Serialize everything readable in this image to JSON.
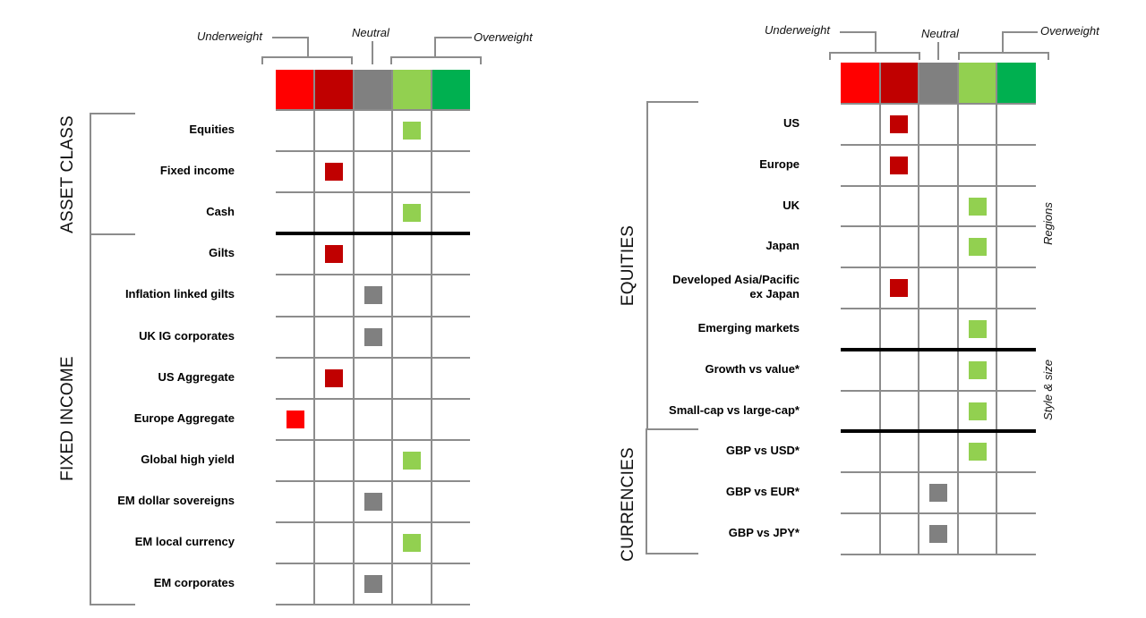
{
  "scale": {
    "labels": {
      "underweight": "Underweight",
      "neutral": "Neutral",
      "overweight": "Overweight"
    },
    "colors": [
      "#ff0000",
      "#c00000",
      "#808080",
      "#92d050",
      "#00b050"
    ],
    "levels": [
      "Strong underweight",
      "Underweight",
      "Neutral",
      "Overweight",
      "Strong overweight"
    ],
    "grid_color": "#8c8c8c",
    "separator_color": "#000000"
  },
  "chart_data": [
    {
      "type": "table",
      "title": "Asset allocation views (left panel)",
      "columns": [
        "Strong underweight",
        "Underweight",
        "Neutral",
        "Overweight",
        "Strong overweight"
      ],
      "column_headers": {
        "underweight": "Underweight",
        "neutral": "Neutral",
        "overweight": "Overweight"
      },
      "groups": [
        {
          "name": "ASSET CLASS",
          "rows": [
            {
              "label": "Equities",
              "position": 4
            },
            {
              "label": "Fixed income",
              "position": 2
            },
            {
              "label": "Cash",
              "position": 4
            }
          ]
        },
        {
          "name": "FIXED INCOME",
          "rows": [
            {
              "label": "Gilts",
              "position": 2
            },
            {
              "label": "Inflation linked gilts",
              "position": 3
            },
            {
              "label": "UK IG corporates",
              "position": 3
            },
            {
              "label": "US Aggregate",
              "position": 2
            },
            {
              "label": "Europe Aggregate",
              "position": 1
            },
            {
              "label": "Global high yield",
              "position": 4
            },
            {
              "label": "EM dollar sovereigns",
              "position": 3
            },
            {
              "label": "EM local currency",
              "position": 4
            },
            {
              "label": "EM corporates",
              "position": 3
            }
          ]
        }
      ]
    },
    {
      "type": "table",
      "title": "Asset allocation views (right panel)",
      "columns": [
        "Strong underweight",
        "Underweight",
        "Neutral",
        "Overweight",
        "Strong overweight"
      ],
      "column_headers": {
        "underweight": "Underweight",
        "neutral": "Neutral",
        "overweight": "Overweight"
      },
      "groups": [
        {
          "name": "EQUITIES",
          "subgroups": [
            {
              "name": "Regions",
              "rows": [
                {
                  "label": "US",
                  "position": 2
                },
                {
                  "label": "Europe",
                  "position": 2
                },
                {
                  "label": "UK",
                  "position": 4
                },
                {
                  "label": "Japan",
                  "position": 4
                },
                {
                  "label": "Developed Asia/Pacific ex Japan",
                  "label_lines": [
                    "Developed Asia/Pacific",
                    "ex Japan"
                  ],
                  "position": 2
                },
                {
                  "label": "Emerging markets",
                  "position": 4
                }
              ]
            },
            {
              "name": "Style & size",
              "rows": [
                {
                  "label": "Growth vs value*",
                  "position": 4
                },
                {
                  "label": "Small-cap vs large-cap*",
                  "position": 4
                }
              ]
            }
          ]
        },
        {
          "name": "CURRENCIES",
          "rows": [
            {
              "label": "GBP vs USD*",
              "position": 4
            },
            {
              "label": "GBP vs EUR*",
              "position": 3
            },
            {
              "label": "GBP vs JPY*",
              "position": 3
            }
          ]
        }
      ]
    }
  ],
  "left": {
    "group_labels": [
      "ASSET CLASS",
      "FIXED INCOME"
    ],
    "rows": [
      "Equities",
      "Fixed income",
      "Cash",
      "Gilts",
      "Inflation linked gilts",
      "UK IG corporates",
      "US Aggregate",
      "Europe Aggregate",
      "Global high yield",
      "EM dollar sovereigns",
      "EM local currency",
      "EM corporates"
    ],
    "positions": [
      4,
      2,
      4,
      2,
      3,
      3,
      2,
      1,
      4,
      3,
      4,
      3
    ],
    "thick_after": [
      3
    ]
  },
  "right": {
    "group_labels": [
      "EQUITIES",
      "CURRENCIES"
    ],
    "side_labels": [
      "Regions",
      "Style & size"
    ],
    "rows": [
      "US",
      "Europe",
      "UK",
      "Japan",
      "Developed Asia/Pacific",
      "Emerging markets",
      "Growth vs value*",
      "Small-cap vs large-cap*",
      "GBP vs USD*",
      "GBP vs EUR*",
      "GBP vs JPY*"
    ],
    "row_second_lines": [
      "",
      "",
      "",
      "",
      "ex Japan",
      "",
      "",
      "",
      "",
      "",
      ""
    ],
    "positions": [
      2,
      2,
      4,
      4,
      2,
      4,
      4,
      4,
      4,
      3,
      3
    ],
    "thick_after": [
      6,
      8
    ]
  }
}
